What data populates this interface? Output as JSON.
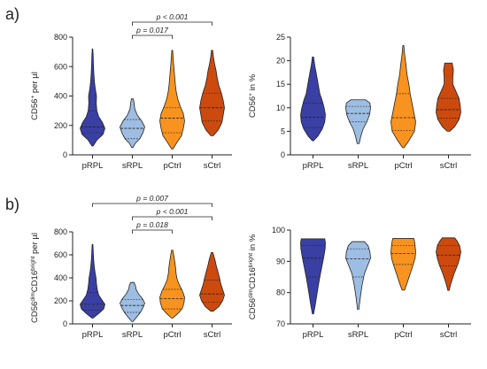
{
  "panel_labels": [
    "a)",
    "b)"
  ],
  "colors": {
    "pRPL": "#3a3fa3",
    "sRPL": "#9dbde3",
    "pCtrl": "#f7931e",
    "sCtrl": "#cc4a0e"
  },
  "chart_data": [
    {
      "id": "a-left",
      "type": "violin",
      "ylabel_main": "CD56",
      "ylabel_sup": "+",
      "ylabel_rest": " per µl",
      "categories": [
        "pRPL",
        "sRPL",
        "pCtrl",
        "sCtrl"
      ],
      "ylim": [
        0,
        800
      ],
      "ticks": [
        0,
        200,
        400,
        600,
        800
      ],
      "tick_labels": [
        "0",
        "200",
        "400",
        "600",
        "800"
      ],
      "series": [
        {
          "category": "pRPL",
          "min": 60,
          "max": 720,
          "q1": 150,
          "median": 190,
          "q3": 300,
          "profile": [
            [
              60,
              0.05
            ],
            [
              100,
              0.35
            ],
            [
              140,
              0.85
            ],
            [
              180,
              1.0
            ],
            [
              220,
              0.8
            ],
            [
              260,
              0.5
            ],
            [
              300,
              0.35
            ],
            [
              350,
              0.3
            ],
            [
              400,
              0.32
            ],
            [
              450,
              0.22
            ],
            [
              500,
              0.15
            ],
            [
              560,
              0.1
            ],
            [
              620,
              0.07
            ],
            [
              680,
              0.05
            ],
            [
              720,
              0.02
            ]
          ]
        },
        {
          "category": "sRPL",
          "min": 50,
          "max": 380,
          "q1": 110,
          "median": 180,
          "q3": 240,
          "profile": [
            [
              50,
              0.05
            ],
            [
              80,
              0.25
            ],
            [
              110,
              0.6
            ],
            [
              150,
              0.85
            ],
            [
              190,
              1.0
            ],
            [
              230,
              0.75
            ],
            [
              270,
              0.4
            ],
            [
              310,
              0.2
            ],
            [
              350,
              0.14
            ],
            [
              380,
              0.08
            ]
          ]
        },
        {
          "category": "pCtrl",
          "min": 40,
          "max": 710,
          "q1": 150,
          "median": 250,
          "q3": 320,
          "profile": [
            [
              40,
              0.05
            ],
            [
              80,
              0.35
            ],
            [
              130,
              0.75
            ],
            [
              180,
              0.9
            ],
            [
              230,
              1.0
            ],
            [
              280,
              0.9
            ],
            [
              330,
              0.65
            ],
            [
              380,
              0.45
            ],
            [
              430,
              0.32
            ],
            [
              480,
              0.25
            ],
            [
              530,
              0.2
            ],
            [
              580,
              0.15
            ],
            [
              630,
              0.1
            ],
            [
              680,
              0.06
            ],
            [
              710,
              0.03
            ]
          ]
        },
        {
          "category": "sCtrl",
          "min": 130,
          "max": 710,
          "q1": 230,
          "median": 320,
          "q3": 420,
          "profile": [
            [
              130,
              0.1
            ],
            [
              170,
              0.5
            ],
            [
              220,
              0.8
            ],
            [
              270,
              0.9
            ],
            [
              320,
              1.0
            ],
            [
              370,
              0.9
            ],
            [
              420,
              0.75
            ],
            [
              470,
              0.55
            ],
            [
              520,
              0.42
            ],
            [
              570,
              0.33
            ],
            [
              620,
              0.2
            ],
            [
              670,
              0.1
            ],
            [
              710,
              0.05
            ]
          ]
        }
      ],
      "brackets": [
        {
          "from": "sRPL",
          "to": "pCtrl",
          "label": "p = 0.017",
          "level": 0
        },
        {
          "from": "sRPL",
          "to": "sCtrl",
          "label": "p < 0.001",
          "level": 1
        }
      ]
    },
    {
      "id": "a-right",
      "type": "violin",
      "ylabel_main": "CD56",
      "ylabel_sup": "+",
      "ylabel_rest": " in %",
      "categories": [
        "pRPL",
        "sRPL",
        "pCtrl",
        "sCtrl"
      ],
      "ylim": [
        0,
        25
      ],
      "ticks": [
        0,
        5,
        10,
        15,
        20,
        25
      ],
      "tick_labels": [
        "0",
        "5",
        "10",
        "15",
        "20",
        "25"
      ],
      "series": [
        {
          "category": "pRPL",
          "min": 3,
          "max": 20.8,
          "q1": 5.8,
          "median": 8,
          "q3": 11,
          "profile": [
            [
              3,
              0.05
            ],
            [
              4,
              0.4
            ],
            [
              5.5,
              0.75
            ],
            [
              7,
              0.95
            ],
            [
              8.5,
              1.0
            ],
            [
              10,
              0.9
            ],
            [
              11.5,
              0.75
            ],
            [
              13,
              0.55
            ],
            [
              14.5,
              0.45
            ],
            [
              16,
              0.35
            ],
            [
              17.5,
              0.25
            ],
            [
              19,
              0.14
            ],
            [
              20.8,
              0.05
            ]
          ]
        },
        {
          "category": "sRPL",
          "min": 2.4,
          "max": 11.7,
          "q1": 7,
          "median": 8.8,
          "q3": 10.3,
          "profile": [
            [
              2.4,
              0.08
            ],
            [
              4,
              0.22
            ],
            [
              5.5,
              0.4
            ],
            [
              7,
              0.7
            ],
            [
              8.5,
              0.92
            ],
            [
              10,
              1.0
            ],
            [
              11,
              0.95
            ],
            [
              11.7,
              0.6
            ]
          ]
        },
        {
          "category": "pCtrl",
          "min": 1.5,
          "max": 23.2,
          "q1": 5.2,
          "median": 7.9,
          "q3": 13,
          "profile": [
            [
              1.5,
              0.05
            ],
            [
              3,
              0.45
            ],
            [
              5,
              0.9
            ],
            [
              7,
              1.0
            ],
            [
              9,
              0.85
            ],
            [
              11,
              0.7
            ],
            [
              13,
              0.55
            ],
            [
              15,
              0.45
            ],
            [
              17,
              0.3
            ],
            [
              19,
              0.22
            ],
            [
              21,
              0.12
            ],
            [
              23.2,
              0.04
            ]
          ]
        },
        {
          "category": "sCtrl",
          "min": 5,
          "max": 19.5,
          "q1": 7.8,
          "median": 9.6,
          "q3": 12,
          "profile": [
            [
              5,
              0.1
            ],
            [
              6,
              0.5
            ],
            [
              7.5,
              0.85
            ],
            [
              9,
              1.0
            ],
            [
              10.5,
              0.95
            ],
            [
              12,
              0.85
            ],
            [
              13.5,
              0.6
            ],
            [
              15,
              0.35
            ],
            [
              16.5,
              0.35
            ],
            [
              18,
              0.4
            ],
            [
              19.5,
              0.3
            ]
          ]
        }
      ],
      "brackets": []
    },
    {
      "id": "b-left",
      "type": "violin",
      "ylabel_main": "CD56",
      "ylabel_sup": "dim",
      "ylabel_mid": "CD16",
      "ylabel_sup2": "bright",
      "ylabel_rest": " per µl",
      "categories": [
        "pRPL",
        "sRPL",
        "pCtrl",
        "sCtrl"
      ],
      "ylim": [
        0,
        800
      ],
      "ticks": [
        0,
        200,
        400,
        600,
        800
      ],
      "tick_labels": [
        "0",
        "200",
        "400",
        "600",
        "800"
      ],
      "series": [
        {
          "category": "pRPL",
          "min": 50,
          "max": 690,
          "q1": 120,
          "median": 170,
          "q3": 270,
          "profile": [
            [
              50,
              0.05
            ],
            [
              90,
              0.5
            ],
            [
              130,
              0.9
            ],
            [
              170,
              1.0
            ],
            [
              210,
              0.75
            ],
            [
              250,
              0.5
            ],
            [
              300,
              0.38
            ],
            [
              350,
              0.32
            ],
            [
              400,
              0.28
            ],
            [
              450,
              0.2
            ],
            [
              500,
              0.14
            ],
            [
              560,
              0.09
            ],
            [
              620,
              0.06
            ],
            [
              690,
              0.03
            ]
          ]
        },
        {
          "category": "sRPL",
          "min": 20,
          "max": 360,
          "q1": 100,
          "median": 160,
          "q3": 210,
          "profile": [
            [
              20,
              0.05
            ],
            [
              60,
              0.35
            ],
            [
              100,
              0.65
            ],
            [
              140,
              0.85
            ],
            [
              180,
              1.0
            ],
            [
              220,
              0.8
            ],
            [
              260,
              0.5
            ],
            [
              300,
              0.3
            ],
            [
              330,
              0.25
            ],
            [
              360,
              0.14
            ]
          ]
        },
        {
          "category": "pCtrl",
          "min": 50,
          "max": 640,
          "q1": 130,
          "median": 220,
          "q3": 300,
          "profile": [
            [
              50,
              0.05
            ],
            [
              90,
              0.45
            ],
            [
              130,
              0.8
            ],
            [
              180,
              0.95
            ],
            [
              230,
              1.0
            ],
            [
              280,
              0.85
            ],
            [
              330,
              0.62
            ],
            [
              380,
              0.42
            ],
            [
              430,
              0.32
            ],
            [
              480,
              0.28
            ],
            [
              530,
              0.22
            ],
            [
              580,
              0.15
            ],
            [
              640,
              0.05
            ]
          ]
        },
        {
          "category": "sCtrl",
          "min": 110,
          "max": 620,
          "q1": 190,
          "median": 260,
          "q3": 380,
          "profile": [
            [
              110,
              0.1
            ],
            [
              150,
              0.55
            ],
            [
              200,
              0.85
            ],
            [
              250,
              1.0
            ],
            [
              300,
              0.85
            ],
            [
              350,
              0.7
            ],
            [
              400,
              0.6
            ],
            [
              450,
              0.48
            ],
            [
              500,
              0.35
            ],
            [
              550,
              0.25
            ],
            [
              600,
              0.12
            ],
            [
              620,
              0.06
            ]
          ]
        }
      ],
      "brackets": [
        {
          "from": "sRPL",
          "to": "pCtrl",
          "label": "p = 0.018",
          "level": 0
        },
        {
          "from": "sRPL",
          "to": "sCtrl",
          "label": "p < 0.001",
          "level": 1
        },
        {
          "from": "pRPL",
          "to": "sCtrl",
          "label": "p = 0.007",
          "level": 2
        }
      ]
    },
    {
      "id": "b-right",
      "type": "violin",
      "ylabel_main": "CD56",
      "ylabel_sup": "dim",
      "ylabel_mid": "CD16",
      "ylabel_sup2": "bright",
      "ylabel_rest": " in %",
      "categories": [
        "pRPL",
        "sRPL",
        "pCtrl",
        "sCtrl"
      ],
      "ylim": [
        70,
        100
      ],
      "ticks": [
        70,
        80,
        90,
        100
      ],
      "tick_labels": [
        "70",
        "80",
        "90",
        "100"
      ],
      "series": [
        {
          "category": "pRPL",
          "min": 73.2,
          "max": 97.2,
          "q1": 85,
          "median": 91,
          "q3": 95,
          "profile": [
            [
              73.2,
              0.05
            ],
            [
              76,
              0.18
            ],
            [
              79,
              0.3
            ],
            [
              82,
              0.42
            ],
            [
              85,
              0.55
            ],
            [
              88,
              0.7
            ],
            [
              91,
              0.85
            ],
            [
              94,
              0.98
            ],
            [
              96,
              1.0
            ],
            [
              97.2,
              0.95
            ]
          ]
        },
        {
          "category": "sRPL",
          "min": 74.6,
          "max": 96.3,
          "q1": 85,
          "median": 90.8,
          "q3": 94,
          "profile": [
            [
              74.6,
              0.05
            ],
            [
              78,
              0.16
            ],
            [
              82,
              0.3
            ],
            [
              86,
              0.5
            ],
            [
              89,
              0.8
            ],
            [
              91,
              1.0
            ],
            [
              93,
              0.95
            ],
            [
              95,
              0.8
            ],
            [
              96.3,
              0.5
            ]
          ]
        },
        {
          "category": "pCtrl",
          "min": 80.8,
          "max": 97.3,
          "q1": 89,
          "median": 92.5,
          "q3": 95,
          "profile": [
            [
              80.8,
              0.1
            ],
            [
              83,
              0.3
            ],
            [
              86,
              0.55
            ],
            [
              89,
              0.8
            ],
            [
              91,
              0.95
            ],
            [
              93,
              1.0
            ],
            [
              95,
              0.95
            ],
            [
              96.5,
              0.9
            ],
            [
              97.3,
              0.85
            ]
          ]
        },
        {
          "category": "sCtrl",
          "min": 80.7,
          "max": 97.5,
          "q1": 88.5,
          "median": 92,
          "q3": 95,
          "profile": [
            [
              80.7,
              0.05
            ],
            [
              83,
              0.2
            ],
            [
              86,
              0.45
            ],
            [
              89,
              0.75
            ],
            [
              91,
              0.9
            ],
            [
              93,
              1.0
            ],
            [
              95,
              0.9
            ],
            [
              96.5,
              0.7
            ],
            [
              97.5,
              0.5
            ]
          ]
        }
      ],
      "brackets": []
    }
  ]
}
